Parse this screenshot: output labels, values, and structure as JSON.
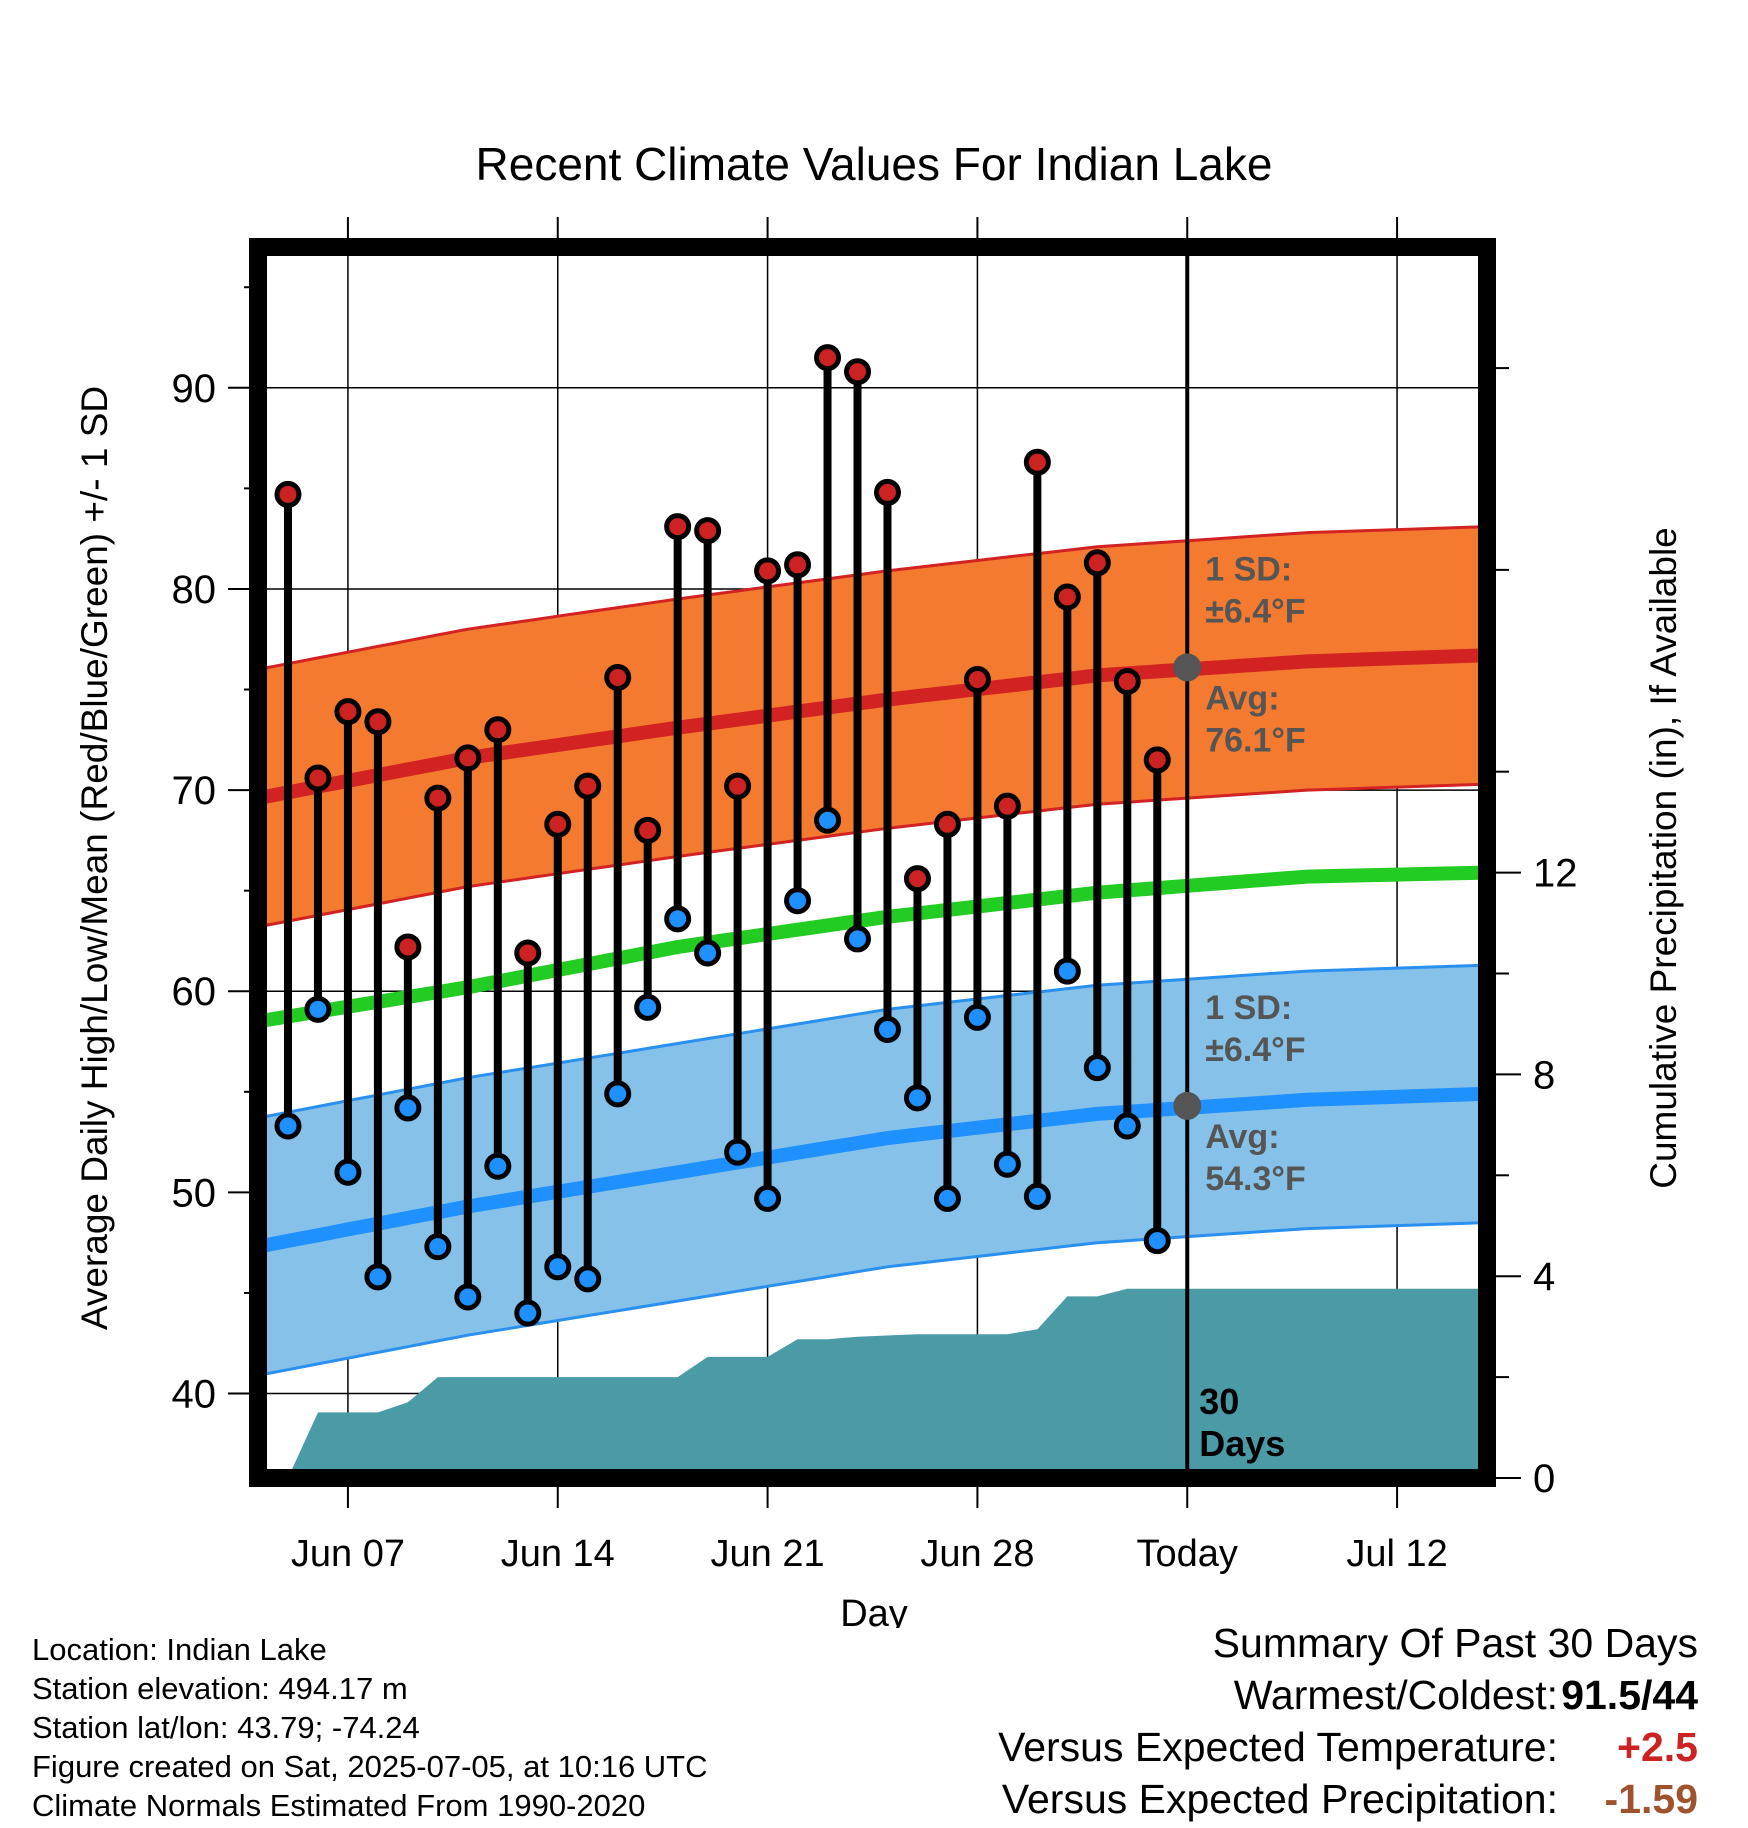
{
  "title": "Recent Climate Values For Indian Lake",
  "colors": {
    "high_marker": "#cc2222",
    "low_marker": "#1e90ff",
    "high_band": "#f47a30",
    "high_band_edge": "#d22222",
    "low_band": "#85c1e8",
    "low_band_edge": "#2a90f0",
    "mean_line": "#22cc22",
    "precip": "#4a9ba6",
    "avg_dot": "#555555",
    "annotation_text": "#555555"
  },
  "chart_data": {
    "type": "line",
    "title": "Recent Climate Values For Indian Lake",
    "xlabel": "Day",
    "ylabel": "Average Daily High/Low/Mean (Red/Blue/Green) +/- 1 SD",
    "y2label": "Cumulative Precipitation (in), If Available",
    "ylim": [
      35.8,
      97
    ],
    "y2lim": [
      0,
      24.4
    ],
    "yticks": [
      "40",
      "50",
      "60",
      "70",
      "80",
      "90"
    ],
    "y2ticks": [
      "0",
      "4",
      "8",
      "12"
    ],
    "xlim": [
      "2025-06-04",
      "2025-07-15"
    ],
    "xticks": [
      {
        "date": "2025-06-07",
        "label": "Jun 07"
      },
      {
        "date": "2025-06-14",
        "label": "Jun 14"
      },
      {
        "date": "2025-06-21",
        "label": "Jun 21"
      },
      {
        "date": "2025-06-28",
        "label": "Jun 28"
      },
      {
        "date": "2025-07-05",
        "label": "Today"
      },
      {
        "date": "2025-07-12",
        "label": "Jul 12"
      }
    ],
    "grid": true,
    "today": "2025-07-05",
    "today_label": "30\nDays",
    "observations": [
      {
        "date": "2025-06-05",
        "high": 84.7,
        "low": 53.3
      },
      {
        "date": "2025-06-06",
        "high": 70.6,
        "low": 59.1
      },
      {
        "date": "2025-06-07",
        "high": 73.9,
        "low": 51.0
      },
      {
        "date": "2025-06-08",
        "high": 73.4,
        "low": 45.8
      },
      {
        "date": "2025-06-09",
        "high": 62.2,
        "low": 54.2
      },
      {
        "date": "2025-06-10",
        "high": 69.6,
        "low": 47.3
      },
      {
        "date": "2025-06-11",
        "high": 71.6,
        "low": 44.8
      },
      {
        "date": "2025-06-12",
        "high": 73.0,
        "low": 51.3
      },
      {
        "date": "2025-06-13",
        "high": 61.9,
        "low": 44.0
      },
      {
        "date": "2025-06-14",
        "high": 68.3,
        "low": 46.3
      },
      {
        "date": "2025-06-15",
        "high": 70.2,
        "low": 45.7
      },
      {
        "date": "2025-06-16",
        "high": 75.6,
        "low": 54.9
      },
      {
        "date": "2025-06-17",
        "high": 68.0,
        "low": 59.2
      },
      {
        "date": "2025-06-18",
        "high": 83.1,
        "low": 63.6
      },
      {
        "date": "2025-06-19",
        "high": 82.9,
        "low": 61.9
      },
      {
        "date": "2025-06-20",
        "high": 70.2,
        "low": 52.0
      },
      {
        "date": "2025-06-21",
        "high": 80.9,
        "low": 49.7
      },
      {
        "date": "2025-06-22",
        "high": 81.2,
        "low": 64.5
      },
      {
        "date": "2025-06-23",
        "high": 91.5,
        "low": 68.5
      },
      {
        "date": "2025-06-24",
        "high": 90.8,
        "low": 62.6
      },
      {
        "date": "2025-06-25",
        "high": 84.8,
        "low": 58.1
      },
      {
        "date": "2025-06-26",
        "high": 65.6,
        "low": 54.7
      },
      {
        "date": "2025-06-27",
        "high": 68.3,
        "low": 49.7
      },
      {
        "date": "2025-06-28",
        "high": 75.5,
        "low": 58.7
      },
      {
        "date": "2025-06-29",
        "high": 69.2,
        "low": 51.4
      },
      {
        "date": "2025-06-30",
        "high": 86.3,
        "low": 49.8
      },
      {
        "date": "2025-07-01",
        "high": 79.6,
        "low": 61.0
      },
      {
        "date": "2025-07-02",
        "high": 81.3,
        "low": 56.2
      },
      {
        "date": "2025-07-03",
        "high": 75.4,
        "low": 53.3
      },
      {
        "date": "2025-07-04",
        "high": 71.5,
        "low": 47.6
      }
    ],
    "normals": {
      "dates": [
        "2025-06-04",
        "2025-06-11",
        "2025-06-18",
        "2025-06-25",
        "2025-07-02",
        "2025-07-09",
        "2025-07-15"
      ],
      "avg_high": [
        69.6,
        71.6,
        73.1,
        74.5,
        75.7,
        76.4,
        76.7
      ],
      "avg_low": [
        47.3,
        49.3,
        51.0,
        52.7,
        53.9,
        54.6,
        54.9
      ],
      "avg_mean": [
        58.5,
        60.2,
        62.2,
        63.7,
        64.9,
        65.7,
        65.9
      ]
    },
    "precip_cumulative": {
      "dates": [
        "2025-06-04",
        "2025-06-05",
        "2025-06-06",
        "2025-06-08",
        "2025-06-09",
        "2025-06-10",
        "2025-06-18",
        "2025-06-19",
        "2025-06-21",
        "2025-06-22",
        "2025-06-23",
        "2025-06-24",
        "2025-06-26",
        "2025-06-29",
        "2025-06-30",
        "2025-07-01",
        "2025-07-02",
        "2025-07-03",
        "2025-07-15"
      ],
      "values": [
        0,
        0,
        1.3,
        1.3,
        1.5,
        2.0,
        2.0,
        2.4,
        2.4,
        2.75,
        2.75,
        2.8,
        2.85,
        2.85,
        2.95,
        3.6,
        3.6,
        3.75,
        3.75
      ]
    },
    "annotations": {
      "high_sd_line1": "1 SD:",
      "high_sd_line2": "±6.4°F",
      "high_avg_line1": "Avg:",
      "high_avg_line2": "76.1°F",
      "high_sd": 6.4,
      "high_avg_today": 76.1,
      "low_sd_line1": "1 SD:",
      "low_sd_line2": "±6.4°F",
      "low_avg_line1": "Avg:",
      "low_avg_line2": "54.3°F",
      "low_sd": 6.4,
      "low_avg_today": 54.3
    }
  },
  "footer": {
    "location": "Location: Indian Lake",
    "elevation": "Station elevation: 494.17 m",
    "latlon": "Station lat/lon: 43.79; -74.24",
    "created": "Figure created on Sat, 2025-07-05, at 10:16 UTC",
    "normals": "Climate Normals Estimated From 1990-2020"
  },
  "summary": {
    "title": "Summary Of Past 30 Days",
    "warmest_label": "Warmest/Coldest:",
    "warmest_value": "91.5/44",
    "temp_label": "Versus Expected Temperature:",
    "temp_value": "+2.5",
    "temp_color": "#cc2222",
    "precip_label": "Versus Expected Precipitation:",
    "precip_value": "-1.59",
    "precip_color": "#a0522d"
  }
}
